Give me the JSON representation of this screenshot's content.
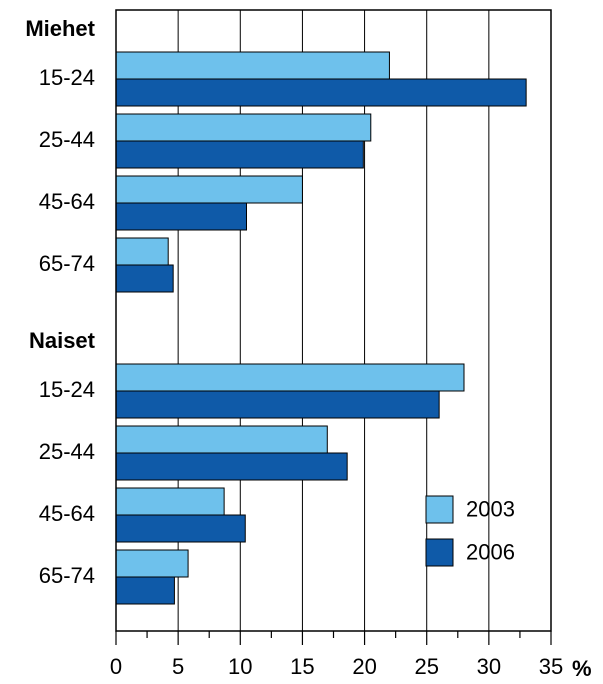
{
  "chart_data": {
    "type": "bar",
    "orientation": "horizontal",
    "xlim": [
      0,
      35
    ],
    "xticks": [
      0,
      5,
      10,
      15,
      20,
      25,
      30,
      35
    ],
    "xunit": "%",
    "grid": true,
    "legend_position": "bottom-right",
    "series": [
      {
        "name": "2003",
        "color": "#6ec1ec"
      },
      {
        "name": "2006",
        "color": "#0f5aa8"
      }
    ],
    "groups": [
      {
        "label": "Miehet",
        "categories": [
          "15-24",
          "25-44",
          "45-64",
          "65-74"
        ],
        "values": {
          "2003": [
            22.0,
            20.5,
            15.0,
            4.2
          ],
          "2006": [
            33.0,
            19.9,
            10.5,
            4.6
          ]
        }
      },
      {
        "label": "Naiset",
        "categories": [
          "15-24",
          "25-44",
          "45-64",
          "65-74"
        ],
        "values": {
          "2003": [
            28.0,
            17.0,
            8.7,
            5.8
          ],
          "2006": [
            26.0,
            18.6,
            10.4,
            4.7
          ]
        }
      }
    ]
  }
}
